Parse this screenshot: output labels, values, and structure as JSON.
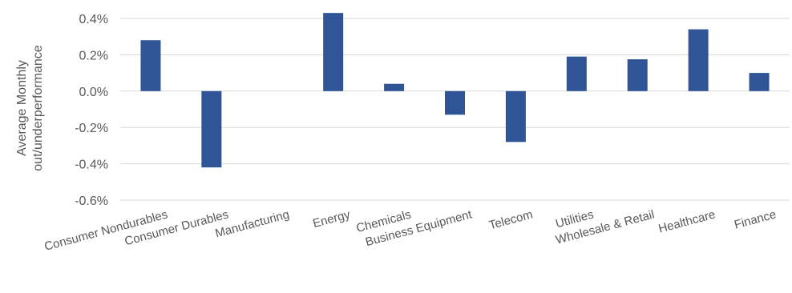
{
  "chart_data": {
    "type": "bar",
    "categories": [
      "Consumer Nondurables",
      "Consumer Durables",
      "Manufacturing",
      "Energy",
      "Chemicals",
      "Business Equipment",
      "Telecom",
      "Utilities",
      "Wholesale & Retail",
      "Healthcare",
      "Finance"
    ],
    "values": [
      0.28,
      -0.42,
      0.0,
      0.43,
      0.04,
      -0.13,
      -0.28,
      0.19,
      0.175,
      0.34,
      0.1
    ],
    "ylabel_lines": [
      "Average Monthly",
      "out/underperformance"
    ],
    "yticks": [
      0.4,
      0.2,
      0.0,
      -0.2,
      -0.4,
      -0.6
    ],
    "ytick_labels": [
      "0.4%",
      "0.2%",
      "0.0%",
      "-0.2%",
      "-0.4%",
      "-0.6%"
    ],
    "ylim": [
      -0.6,
      0.4
    ],
    "grid": true,
    "bar_color": "#2f5597"
  }
}
